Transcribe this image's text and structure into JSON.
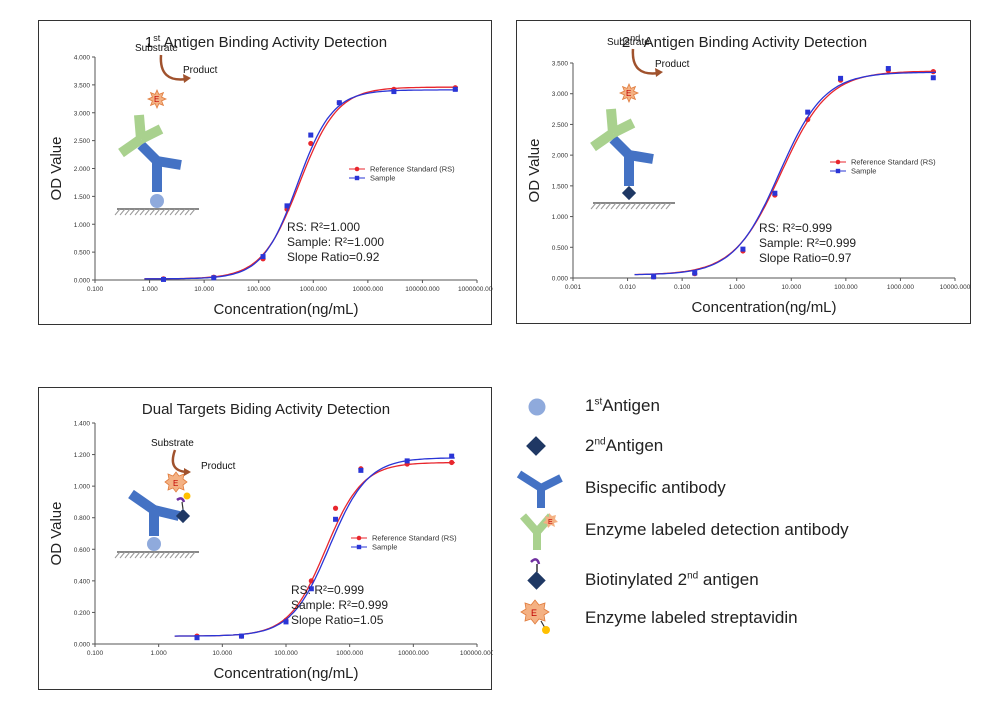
{
  "colors": {
    "rs": "#e8262d",
    "sample": "#2a35d6",
    "antibody_blue": "#4472c4",
    "detect_green": "#a9d18e",
    "antigen1": "#8faadc",
    "antigen2": "#1f3864",
    "enzyme": "#f4b183",
    "arrow": "#a0522d",
    "biotin_purple": "#7030a0",
    "streptavidin_dot": "#ffc000"
  },
  "chart_data": [
    {
      "type": "scatter",
      "title_main": "Antigen Binding Activity Detection",
      "title_prefix": "1",
      "title_sup": "st",
      "xlabel": "Concentration(ng/mL)",
      "ylabel": "OD Value",
      "x_scale": "log",
      "x_ticks": [
        "0.100",
        "1.000",
        "10.000",
        "100.000",
        "1000.000",
        "10000.000",
        "100000.000",
        "1000000.000"
      ],
      "xlim": [
        0.1,
        1000000
      ],
      "ylim": [
        0,
        4.0
      ],
      "y_ticks": [
        "0.000",
        "0.500",
        "1.000",
        "1.500",
        "2.000",
        "2.500",
        "3.000",
        "3.500",
        "4.000"
      ],
      "legend": [
        "Reference Standard (RS)",
        "Sample"
      ],
      "legend_position": "right",
      "schematic_labels": {
        "substrate": "Substrate",
        "product": "Product",
        "enzyme": "E"
      },
      "stats": [
        "RS: R²=1.000",
        "Sample: R²=1.000",
        "Slope Ratio=0.92"
      ],
      "series": [
        {
          "name": "Reference Standard (RS)",
          "x": [
            1.8,
            15,
            120,
            330,
            900,
            3000,
            30000,
            400000
          ],
          "y": [
            0.02,
            0.05,
            0.38,
            1.27,
            2.45,
            3.18,
            3.42,
            3.45
          ],
          "curve": {
            "bottom": 0.02,
            "top": 3.46,
            "ec50": 560,
            "hill": 1.25
          }
        },
        {
          "name": "Sample",
          "x": [
            1.8,
            15,
            120,
            330,
            900,
            3000,
            30000,
            400000
          ],
          "y": [
            0.01,
            0.04,
            0.42,
            1.33,
            2.6,
            3.18,
            3.38,
            3.42
          ],
          "curve": {
            "bottom": 0.02,
            "top": 3.41,
            "ec50": 510,
            "hill": 1.35
          }
        }
      ]
    },
    {
      "type": "scatter",
      "title_main": "Antigen Binding Activity Detection",
      "title_prefix": "2",
      "title_sup": "nd",
      "xlabel": "Concentration(ng/mL)",
      "ylabel": "OD Value",
      "x_scale": "log",
      "x_ticks": [
        "0.001",
        "0.010",
        "0.100",
        "1.000",
        "10.000",
        "100.000",
        "1000.000",
        "10000.000"
      ],
      "xlim": [
        0.001,
        10000
      ],
      "ylim": [
        0,
        3.5
      ],
      "y_ticks": [
        "0.000",
        "0.500",
        "1.000",
        "1.500",
        "2.000",
        "2.500",
        "3.000",
        "3.500"
      ],
      "legend": [
        "Reference Standard (RS)",
        "Sample"
      ],
      "legend_position": "right",
      "schematic_labels": {
        "substrate": "Substrate",
        "product": "Product",
        "enzyme": "E"
      },
      "stats": [
        "RS: R²=0.999",
        "Sample: R²=0.999",
        "Slope Ratio=0.97"
      ],
      "series": [
        {
          "name": "Reference Standard (RS)",
          "x": [
            0.03,
            0.17,
            1.3,
            5,
            20,
            80,
            600,
            4000
          ],
          "y": [
            0.02,
            0.07,
            0.44,
            1.35,
            2.58,
            3.22,
            3.38,
            3.36
          ],
          "curve": {
            "bottom": 0.05,
            "top": 3.37,
            "ec50": 6.5,
            "hill": 1.0
          }
        },
        {
          "name": "Sample",
          "x": [
            0.03,
            0.17,
            1.3,
            5,
            20,
            80,
            600,
            4000
          ],
          "y": [
            0.02,
            0.08,
            0.47,
            1.38,
            2.7,
            3.25,
            3.41,
            3.26
          ],
          "curve": {
            "bottom": 0.05,
            "top": 3.35,
            "ec50": 6.0,
            "hill": 1.05
          }
        }
      ]
    },
    {
      "type": "scatter",
      "title_main": "Dual Targets Biding Activity Detection",
      "title_prefix": "",
      "title_sup": "",
      "xlabel": "Concentration(ng/mL)",
      "ylabel": "OD Value",
      "x_scale": "log",
      "x_ticks": [
        "0.100",
        "1.000",
        "10.000",
        "100.000",
        "1000.000",
        "10000.000",
        "100000.000"
      ],
      "xlim": [
        0.1,
        100000
      ],
      "ylim": [
        0,
        1.4
      ],
      "y_ticks": [
        "0.000",
        "0.200",
        "0.400",
        "0.600",
        "0.800",
        "1.000",
        "1.200",
        "1.400"
      ],
      "legend": [
        "Reference Standard (RS)",
        "Sample"
      ],
      "legend_position": "right",
      "schematic_labels": {
        "substrate": "Substrate",
        "product": "Product",
        "enzyme": "E"
      },
      "stats": [
        "RS: R²=0.999",
        "Sample: R²=0.999",
        "Slope Ratio=1.05"
      ],
      "series": [
        {
          "name": "Reference Standard (RS)",
          "x": [
            4,
            20,
            100,
            250,
            600,
            1500,
            8000,
            40000
          ],
          "y": [
            0.05,
            0.05,
            0.15,
            0.4,
            0.86,
            1.11,
            1.14,
            1.15
          ],
          "curve": {
            "bottom": 0.05,
            "top": 1.15,
            "ec50": 420,
            "hill": 1.5
          }
        },
        {
          "name": "Sample",
          "x": [
            4,
            20,
            100,
            250,
            600,
            1500,
            8000,
            40000
          ],
          "y": [
            0.04,
            0.05,
            0.14,
            0.35,
            0.79,
            1.1,
            1.16,
            1.19
          ],
          "curve": {
            "bottom": 0.05,
            "top": 1.18,
            "ec50": 480,
            "hill": 1.45
          }
        }
      ]
    }
  ],
  "legend": {
    "items": [
      {
        "icon": "antigen-1-icon",
        "pre": "1",
        "sup": "st",
        "text": "Antigen"
      },
      {
        "icon": "antigen-2-icon",
        "pre": "2",
        "sup": "nd",
        "text": "Antigen"
      },
      {
        "icon": "bispecific-antibody-icon",
        "pre": "",
        "sup": "",
        "text": "Bispecific antibody"
      },
      {
        "icon": "enzyme-detection-antibody-icon",
        "pre": "",
        "sup": "",
        "text": "Enzyme labeled detection antibody"
      },
      {
        "icon": "biotinylated-antigen-icon",
        "pre": "Biotinylated 2",
        "sup": "nd",
        "text": " antigen"
      },
      {
        "icon": "enzyme-streptavidin-icon",
        "pre": "",
        "sup": "",
        "text": "Enzyme labeled streptavidin"
      }
    ]
  }
}
